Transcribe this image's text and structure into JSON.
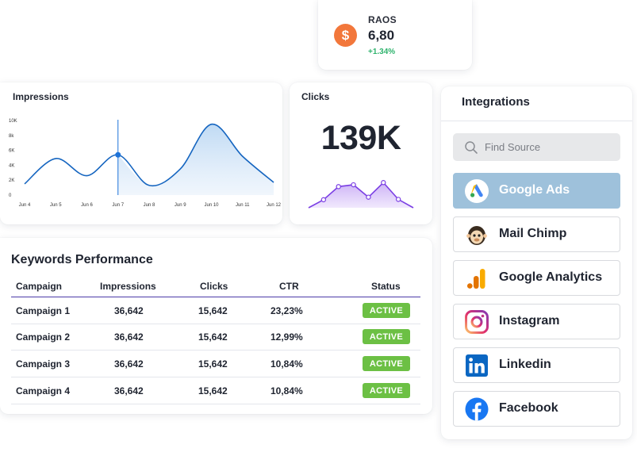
{
  "raos": {
    "label": "RAOS",
    "value": "6,80",
    "change": "+1.34%",
    "icon": "dollar-icon",
    "accent": "#f2773b",
    "change_color": "#2fb36d"
  },
  "impressions": {
    "title": "Impressions"
  },
  "chart_data": [
    {
      "type": "area",
      "title": "Impressions",
      "x": [
        "Jun 4",
        "Jun 5",
        "Jun 6",
        "Jun 7",
        "Jun 8",
        "Jun 9",
        "Jun 10",
        "Jun 11",
        "Jun 12"
      ],
      "y_ticks": [
        "10K",
        "8k",
        "6K",
        "4K",
        "2K",
        "0"
      ],
      "ylim": [
        0,
        10000
      ],
      "series": [
        {
          "values": [
            1500,
            4900,
            2600,
            5400,
            1300,
            3500,
            9500,
            5200,
            1700
          ]
        }
      ],
      "highlight": {
        "x": "Jun 7",
        "value": 5400
      },
      "line_color": "#1565c0",
      "fill_color": "#bcd8f3"
    },
    {
      "type": "area",
      "title": "Clicks",
      "x": [
        1,
        2,
        3,
        4,
        5,
        6,
        7,
        8
      ],
      "series": [
        {
          "values": [
            0,
            2.2,
            5.8,
            6.3,
            2.9,
            6.9,
            2.3,
            0
          ]
        }
      ],
      "line_color": "#7b3fe4",
      "fill_color": "#d7c3f7"
    }
  ],
  "clicks": {
    "title": "Clicks",
    "total": "139K"
  },
  "keywords": {
    "title": "Keywords Performance",
    "headers": [
      "Campaign",
      "Impressions",
      "Clicks",
      "CTR",
      "Status"
    ],
    "rows": [
      {
        "campaign": "Campaign 1",
        "impressions": "36,642",
        "clicks": "15,642",
        "ctr": "23,23%",
        "status": "ACTIVE"
      },
      {
        "campaign": "Campaign 2",
        "impressions": "36,642",
        "clicks": "15,642",
        "ctr": "12,99%",
        "status": "ACTIVE"
      },
      {
        "campaign": "Campaign 3",
        "impressions": "36,642",
        "clicks": "15,642",
        "ctr": "10,84%",
        "status": "ACTIVE"
      },
      {
        "campaign": "Campaign 4",
        "impressions": "36,642",
        "clicks": "15,642",
        "ctr": "10,84%",
        "status": "ACTIVE"
      }
    ],
    "status_color": "#6cc044"
  },
  "integrations": {
    "title": "Integrations",
    "search_placeholder": "Find Source",
    "sources": [
      {
        "name": "Google Ads",
        "icon": "google-ads-icon",
        "active": true
      },
      {
        "name": "Mail Chimp",
        "icon": "mailchimp-icon",
        "active": false
      },
      {
        "name": "Google Analytics",
        "icon": "google-analytics-icon",
        "active": false
      },
      {
        "name": "Instagram",
        "icon": "instagram-icon",
        "active": false
      },
      {
        "name": "Linkedin",
        "icon": "linkedin-icon",
        "active": false
      },
      {
        "name": "Facebook",
        "icon": "facebook-icon",
        "active": false
      }
    ]
  }
}
